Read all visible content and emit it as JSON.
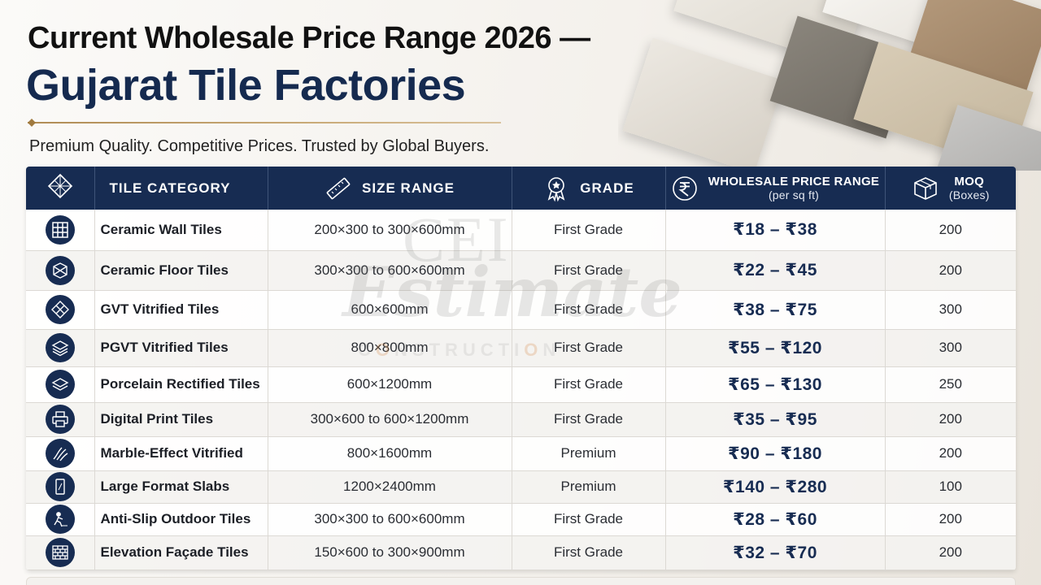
{
  "header": {
    "title_line1": "Current Wholesale Price Range 2026 —",
    "title_line2": "Gujarat Tile Factories",
    "subtitle": "Premium Quality. Competitive Prices. Trusted by Global Buyers."
  },
  "watermark": {
    "brand": "CEI",
    "name": "Estimate",
    "tagline_a": "C",
    "tagline_b": "NSTRUCTI",
    "tagline_o": "O",
    "tagline_c": "N"
  },
  "table": {
    "headers": {
      "category": "TILE CATEGORY",
      "size": "SIZE RANGE",
      "grade": "GRADE",
      "price_main": "WHOLESALE PRICE RANGE",
      "price_sub": "(per sq ft)",
      "moq_main": "MOQ",
      "moq_sub": "(Boxes)"
    },
    "header_icons": [
      "tile-grid-icon",
      "ruler-icon",
      "award-badge-icon",
      "rupee-icon",
      "box-icon"
    ],
    "rows": [
      {
        "icon": "grid-icon",
        "category": "Ceramic Wall Tiles",
        "size": "200×300 to 300×600mm",
        "grade": "First Grade",
        "price": "₹18 – ₹38",
        "moq": "200"
      },
      {
        "icon": "floor-tile-icon",
        "category": "Ceramic Floor Tiles",
        "size": "300×300 to 600×600mm",
        "grade": "First Grade",
        "price": "₹22 – ₹45",
        "moq": "200"
      },
      {
        "icon": "diamond-tile-icon",
        "category": "GVT Vitrified Tiles",
        "size": "600×600mm",
        "grade": "First Grade",
        "price": "₹38 – ₹75",
        "moq": "300"
      },
      {
        "icon": "layers-icon",
        "category": "PGVT Vitrified Tiles",
        "size": "800×800mm",
        "grade": "First Grade",
        "price": "₹55 – ₹120",
        "moq": "300"
      },
      {
        "icon": "layers-icon",
        "category": "Porcelain Rectified Tiles",
        "size": "600×1200mm",
        "grade": "First Grade",
        "price": "₹65 – ₹130",
        "moq": "250"
      },
      {
        "icon": "printer-icon",
        "category": "Digital Print Tiles",
        "size": "300×600 to 600×1200mm",
        "grade": "First Grade",
        "price": "₹35 – ₹95",
        "moq": "200"
      },
      {
        "icon": "marble-icon",
        "category": "Marble-Effect Vitrified",
        "size": "800×1600mm",
        "grade": "Premium",
        "price": "₹90 – ₹180",
        "moq": "200"
      },
      {
        "icon": "slab-icon",
        "category": "Large Format Slabs",
        "size": "1200×2400mm",
        "grade": "Premium",
        "price": "₹140 – ₹280",
        "moq": "100"
      },
      {
        "icon": "anti-slip-icon",
        "category": "Anti-Slip Outdoor Tiles",
        "size": "300×300 to 600×600mm",
        "grade": "First Grade",
        "price": "₹28 – ₹60",
        "moq": "200"
      },
      {
        "icon": "brick-wall-icon",
        "category": "Elevation Façade Tiles",
        "size": "150×600 to 300×900mm",
        "grade": "First Grade",
        "price": "₹32 – ₹70",
        "moq": "200"
      }
    ]
  },
  "colors": {
    "navy": "#172c52",
    "gold": "#b08c55"
  }
}
